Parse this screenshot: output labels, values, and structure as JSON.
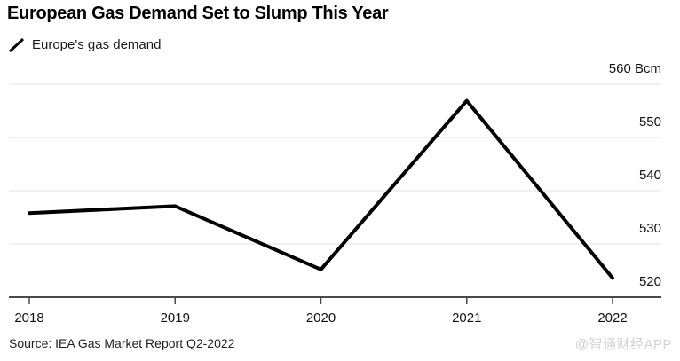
{
  "header": {
    "title": "European Gas Demand Set to Slump This Year"
  },
  "legend": {
    "label": "Europe's gas demand",
    "marker": "diagonal-line"
  },
  "chart_data": {
    "type": "line",
    "title": "European Gas Demand Set to Slump This Year",
    "unit": "Bcm",
    "categories": [
      "2018",
      "2019",
      "2020",
      "2021",
      "2022"
    ],
    "series": [
      {
        "name": "Europe's gas demand",
        "color": "#000000",
        "values": [
          535.8,
          537.1,
          525.2,
          556.9,
          523.6
        ]
      }
    ],
    "yticks": [
      {
        "value": 560,
        "label": "560 Bcm"
      },
      {
        "value": 550,
        "label": "550"
      },
      {
        "value": 540,
        "label": "540"
      },
      {
        "value": 530,
        "label": "530"
      },
      {
        "value": 520,
        "label": "520"
      }
    ],
    "ylim": [
      520,
      560
    ],
    "grid": "horizontal",
    "legend_position": "top-left",
    "colors": {
      "line": "#000000",
      "grid": "#e0e0e0",
      "axis": "#4a4a4a"
    }
  },
  "footer": {
    "source": "Source: IEA Gas Market Report Q2-2022",
    "watermark": "@智通财经APP"
  }
}
